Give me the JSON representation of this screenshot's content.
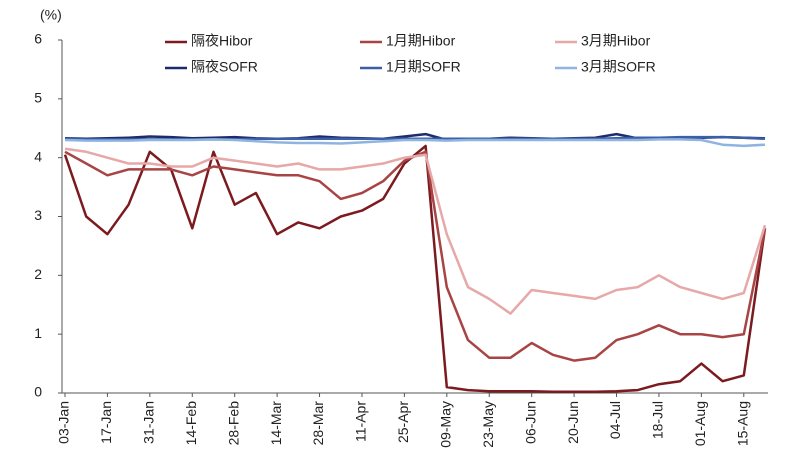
{
  "chart_data": {
    "type": "line",
    "y_label": "(%)",
    "categories": [
      "03-Jan",
      null,
      "17-Jan",
      null,
      "31-Jan",
      null,
      "14-Feb",
      null,
      "28-Feb",
      null,
      "14-Mar",
      null,
      "28-Mar",
      null,
      "11-Apr",
      null,
      "25-Apr",
      null,
      "09-May",
      null,
      "23-May",
      null,
      "06-Jun",
      null,
      "20-Jun",
      null,
      "04-Jul",
      null,
      "18-Jul",
      null,
      "01-Aug",
      null,
      "15-Aug",
      null
    ],
    "series": [
      {
        "name": "隔夜Hibor",
        "color": "#7b1a1f",
        "values": [
          4.05,
          3.0,
          2.7,
          3.2,
          4.1,
          3.8,
          2.8,
          4.1,
          3.2,
          3.4,
          2.7,
          2.9,
          2.8,
          3.0,
          3.1,
          3.3,
          3.9,
          4.2,
          0.1,
          0.05,
          0.03,
          0.03,
          0.03,
          0.02,
          0.02,
          0.02,
          0.03,
          0.05,
          0.15,
          0.2,
          0.5,
          0.2,
          0.3,
          2.8
        ]
      },
      {
        "name": "1月期Hibor",
        "color": "#a84444",
        "values": [
          4.1,
          3.9,
          3.7,
          3.8,
          3.8,
          3.8,
          3.7,
          3.85,
          3.8,
          3.75,
          3.7,
          3.7,
          3.6,
          3.3,
          3.4,
          3.6,
          3.95,
          4.1,
          1.8,
          0.9,
          0.6,
          0.6,
          0.85,
          0.65,
          0.55,
          0.6,
          0.9,
          1.0,
          1.15,
          1.0,
          1.0,
          0.95,
          1.0,
          2.8
        ]
      },
      {
        "name": "3月期Hibor",
        "color": "#e6a8a8",
        "values": [
          4.15,
          4.1,
          4.0,
          3.9,
          3.9,
          3.85,
          3.85,
          4.0,
          3.95,
          3.9,
          3.85,
          3.9,
          3.8,
          3.8,
          3.85,
          3.9,
          4.0,
          4.05,
          2.7,
          1.8,
          1.6,
          1.35,
          1.75,
          1.7,
          1.65,
          1.6,
          1.75,
          1.8,
          2.0,
          1.8,
          1.7,
          1.6,
          1.7,
          2.85
        ]
      },
      {
        "name": "隔夜SOFR",
        "color": "#1f2a6b",
        "values": [
          4.33,
          4.32,
          4.33,
          4.34,
          4.36,
          4.35,
          4.33,
          4.34,
          4.35,
          4.33,
          4.32,
          4.33,
          4.36,
          4.34,
          4.33,
          4.32,
          4.36,
          4.4,
          4.3,
          4.31,
          4.32,
          4.34,
          4.33,
          4.32,
          4.33,
          4.34,
          4.4,
          4.33,
          4.34,
          4.33,
          4.34,
          4.35,
          4.34,
          4.33
        ]
      },
      {
        "name": "1月期SOFR",
        "color": "#3a5fa8",
        "values": [
          4.32,
          4.31,
          4.31,
          4.31,
          4.31,
          4.31,
          4.31,
          4.31,
          4.31,
          4.32,
          4.32,
          4.32,
          4.32,
          4.32,
          4.32,
          4.32,
          4.32,
          4.32,
          4.32,
          4.32,
          4.32,
          4.32,
          4.32,
          4.32,
          4.32,
          4.32,
          4.33,
          4.34,
          4.34,
          4.35,
          4.35,
          4.35,
          4.34,
          4.32
        ]
      },
      {
        "name": "3月期SOFR",
        "color": "#8fb4e0",
        "values": [
          4.3,
          4.29,
          4.29,
          4.29,
          4.3,
          4.3,
          4.3,
          4.31,
          4.3,
          4.28,
          4.26,
          4.25,
          4.25,
          4.24,
          4.26,
          4.28,
          4.3,
          4.3,
          4.29,
          4.3,
          4.3,
          4.3,
          4.3,
          4.3,
          4.3,
          4.3,
          4.3,
          4.3,
          4.31,
          4.31,
          4.3,
          4.22,
          4.2,
          4.22
        ]
      }
    ],
    "ylim": [
      0,
      6
    ],
    "yticks": [
      0,
      1,
      2,
      3,
      4,
      5,
      6
    ],
    "grid": false
  }
}
